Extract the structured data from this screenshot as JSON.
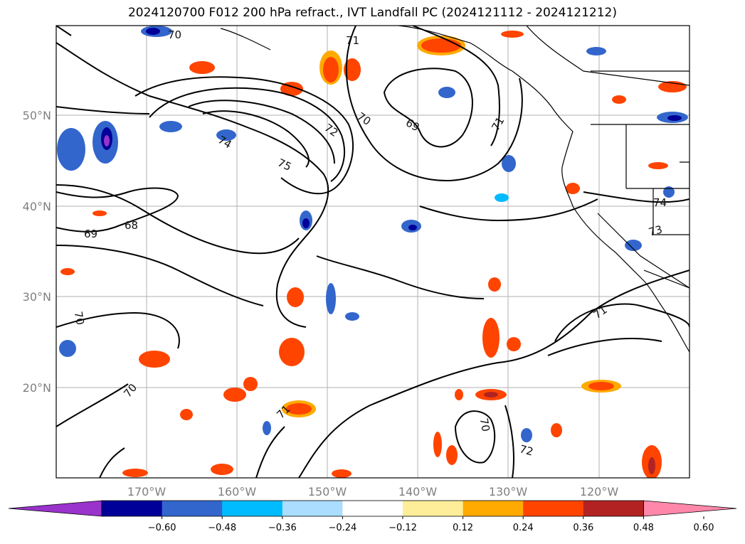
{
  "title": "2024120700 F012 200 hPa refract., IVT Landfall PC (2024121112 - 2024121212)",
  "lat_labels": [
    "50°N",
    "40°N",
    "30°N",
    "20°N"
  ],
  "lon_labels": [
    "170°W",
    "160°W",
    "150°W",
    "140°W",
    "130°W",
    "120°W"
  ],
  "colorbar": {
    "colors": [
      "#9933cc",
      "#000099",
      "#3366cc",
      "#00bbff",
      "#aaddff",
      "#ffffff",
      "#ffee99",
      "#ffaa00",
      "#ff4400",
      "#b22222",
      "#ff88aa"
    ],
    "ticks": [
      "−0.60",
      "−0.48",
      "−0.36",
      "−0.24",
      "−0.12",
      "0.12",
      "0.24",
      "0.36",
      "0.48",
      "0.60"
    ]
  },
  "contour_labels": [
    "70",
    "71",
    "72",
    "70",
    "69",
    "71",
    "74",
    "75",
    "68",
    "69",
    "70",
    "70",
    "71",
    "70",
    "72",
    "71",
    "74",
    "73"
  ]
}
